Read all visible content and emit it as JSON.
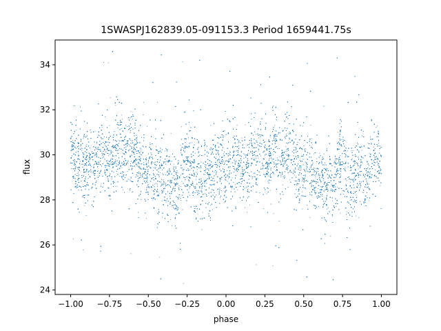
{
  "chart_data": {
    "type": "scatter",
    "title": "1SWASPJ162839.05-091153.3 Period 1659441.75s",
    "xlabel": "phase",
    "ylabel": "flux",
    "xlim": [
      -1.1,
      1.1
    ],
    "ylim": [
      23.8,
      35.1
    ],
    "xticks": [
      -1.0,
      -0.75,
      -0.5,
      -0.25,
      0.0,
      0.25,
      0.5,
      0.75,
      1.0
    ],
    "xtick_labels": [
      "−1.00",
      "−0.75",
      "−0.50",
      "−0.25",
      "0.00",
      "0.25",
      "0.50",
      "0.75",
      "1.00"
    ],
    "yticks": [
      24,
      26,
      28,
      30,
      32,
      34
    ],
    "ytick_labels": [
      "24",
      "26",
      "28",
      "30",
      "32",
      "34"
    ],
    "grid": false,
    "marker_color": "#1f77b4",
    "series": [
      {
        "trend_phase": [
          -1.0,
          -0.9,
          -0.8,
          -0.7,
          -0.6,
          -0.5,
          -0.4,
          -0.3,
          -0.25,
          -0.2,
          -0.1,
          0.0,
          0.1,
          0.2,
          0.3,
          0.4,
          0.5,
          0.6,
          0.7,
          0.75,
          0.8,
          0.9,
          1.0
        ],
        "trend_flux": [
          29.7,
          29.4,
          30.0,
          30.3,
          29.9,
          29.3,
          28.9,
          28.9,
          29.6,
          28.9,
          29.2,
          29.4,
          29.4,
          29.6,
          30.1,
          29.9,
          29.4,
          29.0,
          28.8,
          29.6,
          28.8,
          29.2,
          29.7
        ]
      }
    ]
  }
}
